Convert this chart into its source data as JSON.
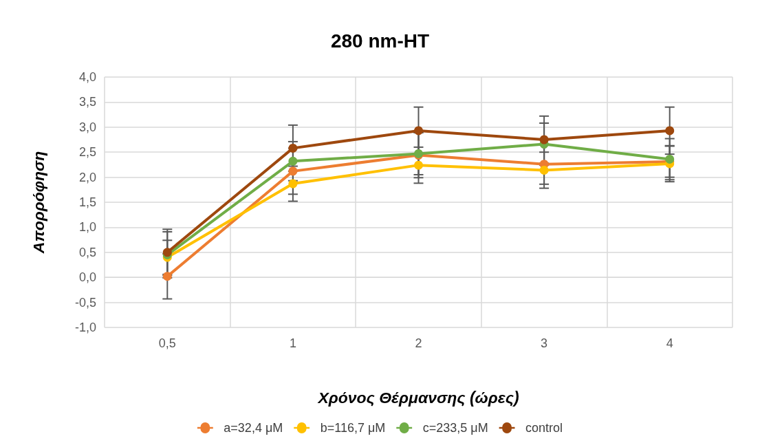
{
  "chart_data": {
    "type": "line",
    "title": "280 nm-HT",
    "xlabel": "Χρόνος Θέρμανσης (ώρες)",
    "ylabel": "Απορρόφηση",
    "categories": [
      "0,5",
      "1",
      "2",
      "3",
      "4"
    ],
    "series": [
      {
        "name": "a=32,4 μM",
        "color": "#ed7d31",
        "values": [
          0.02,
          2.12,
          2.44,
          2.26,
          2.31
        ],
        "errors": [
          0.45,
          0.46,
          0.45,
          0.4,
          0.31
        ]
      },
      {
        "name": "b=116,7 μM",
        "color": "#ffc000",
        "values": [
          0.4,
          1.87,
          2.24,
          2.14,
          2.27
        ],
        "errors": [
          0.34,
          0.35,
          0.36,
          0.36,
          0.36
        ]
      },
      {
        "name": "c=233,5 μM",
        "color": "#70ad47",
        "values": [
          0.45,
          2.32,
          2.47,
          2.66,
          2.36
        ],
        "errors": [
          0.46,
          0.39,
          0.42,
          0.42,
          0.41
        ]
      },
      {
        "name": "control",
        "color": "#9e480e",
        "values": [
          0.5,
          2.58,
          2.93,
          2.75,
          2.93
        ],
        "errors": [
          0.46,
          0.46,
          0.47,
          0.47,
          0.47
        ]
      }
    ],
    "ylim": [
      -1,
      4
    ],
    "yticks": [
      {
        "value": -1,
        "label": "-1,0"
      },
      {
        "value": -0.5,
        "label": "-0,5"
      },
      {
        "value": 0,
        "label": "0,0"
      },
      {
        "value": 0.5,
        "label": "0,5"
      },
      {
        "value": 1,
        "label": "1,0"
      },
      {
        "value": 1.5,
        "label": "1,5"
      },
      {
        "value": 2,
        "label": "2,0"
      },
      {
        "value": 2.5,
        "label": "2,5"
      },
      {
        "value": 3,
        "label": "3,0"
      },
      {
        "value": 3.5,
        "label": "3,5"
      },
      {
        "value": 4,
        "label": "4,0"
      }
    ],
    "grid": true,
    "legend": "bottom",
    "marker": "circle",
    "line_style": "solid"
  }
}
